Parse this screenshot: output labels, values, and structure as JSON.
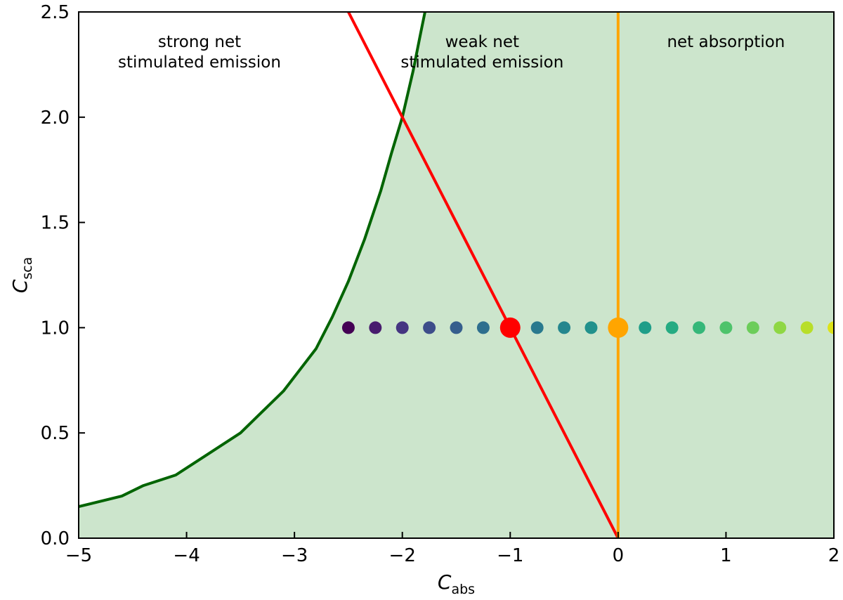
{
  "chart_data": {
    "type": "scatter",
    "title": "",
    "xlabel": {
      "symbol": "C",
      "subscript": "abs"
    },
    "ylabel": {
      "symbol": "C",
      "subscript": "sca"
    },
    "xlim": [
      -5,
      2
    ],
    "ylim": [
      0,
      2.5
    ],
    "xticks": [
      -5,
      -4,
      -3,
      -2,
      -1,
      0,
      1,
      2
    ],
    "xtick_labels": [
      "−5",
      "−4",
      "−3",
      "−2",
      "−1",
      "0",
      "1",
      "2"
    ],
    "yticks": [
      0.0,
      0.5,
      1.0,
      1.5,
      2.0,
      2.5
    ],
    "ytick_labels": [
      "0.0",
      "0.5",
      "1.0",
      "1.5",
      "2.0",
      "2.5"
    ],
    "grid": false,
    "shaded_region": {
      "color": "#cce5cc",
      "boundary_curve": {
        "color": "#006400",
        "x": [
          -5.0,
          -4.6,
          -4.4,
          -4.1,
          -3.8,
          -3.5,
          -3.3,
          -3.1,
          -2.95,
          -2.8,
          -2.65,
          -2.5,
          -2.35,
          -2.2,
          -2.1,
          -2.0,
          -1.9,
          -1.83,
          -1.79
        ],
        "y": [
          0.15,
          0.2,
          0.25,
          0.3,
          0.4,
          0.5,
          0.6,
          0.7,
          0.8,
          0.9,
          1.05,
          1.22,
          1.42,
          1.65,
          1.83,
          2.0,
          2.22,
          2.4,
          2.5
        ]
      }
    },
    "lines": [
      {
        "name": "red-line",
        "color": "#ff0000",
        "x": [
          -2.5,
          0
        ],
        "y": [
          2.5,
          0
        ]
      },
      {
        "name": "orange-line",
        "color": "#ffa500",
        "x": [
          0,
          0
        ],
        "y": [
          0,
          2.5
        ]
      }
    ],
    "points": {
      "y": 1.0,
      "x": [
        -2.5,
        -2.25,
        -2.0,
        -1.75,
        -1.5,
        -1.25,
        -0.75,
        -0.5,
        -0.25,
        0.25,
        0.5,
        0.75,
        1.0,
        1.25,
        1.5,
        1.75,
        2.0
      ],
      "colors": [
        "#440154",
        "#481c6e",
        "#453581",
        "#3d4d8a",
        "#355e8d",
        "#2e6f8e",
        "#29798e",
        "#24868e",
        "#21918c",
        "#1f9e89",
        "#25ab82",
        "#35b779",
        "#4ec36b",
        "#6ccd5a",
        "#8fd744",
        "#b8de29",
        "#dde318"
      ]
    },
    "highlight_points": [
      {
        "name": "red-point",
        "x": -1.0,
        "y": 1.0,
        "color": "#ff0000"
      },
      {
        "name": "orange-point",
        "x": 0.0,
        "y": 1.0,
        "color": "#ffa500"
      }
    ],
    "annotations": [
      {
        "name": "strong-emission-label",
        "x": -3.88,
        "y": 2.333,
        "lines": [
          "strong net",
          "stimulated emission"
        ]
      },
      {
        "name": "weak-emission-label",
        "x": -1.26,
        "y": 2.333,
        "lines": [
          "weak net",
          "stimulated emission"
        ]
      },
      {
        "name": "net-absorption-label",
        "x": 1.0,
        "y": 2.333,
        "lines": [
          "net absorption"
        ]
      }
    ]
  }
}
